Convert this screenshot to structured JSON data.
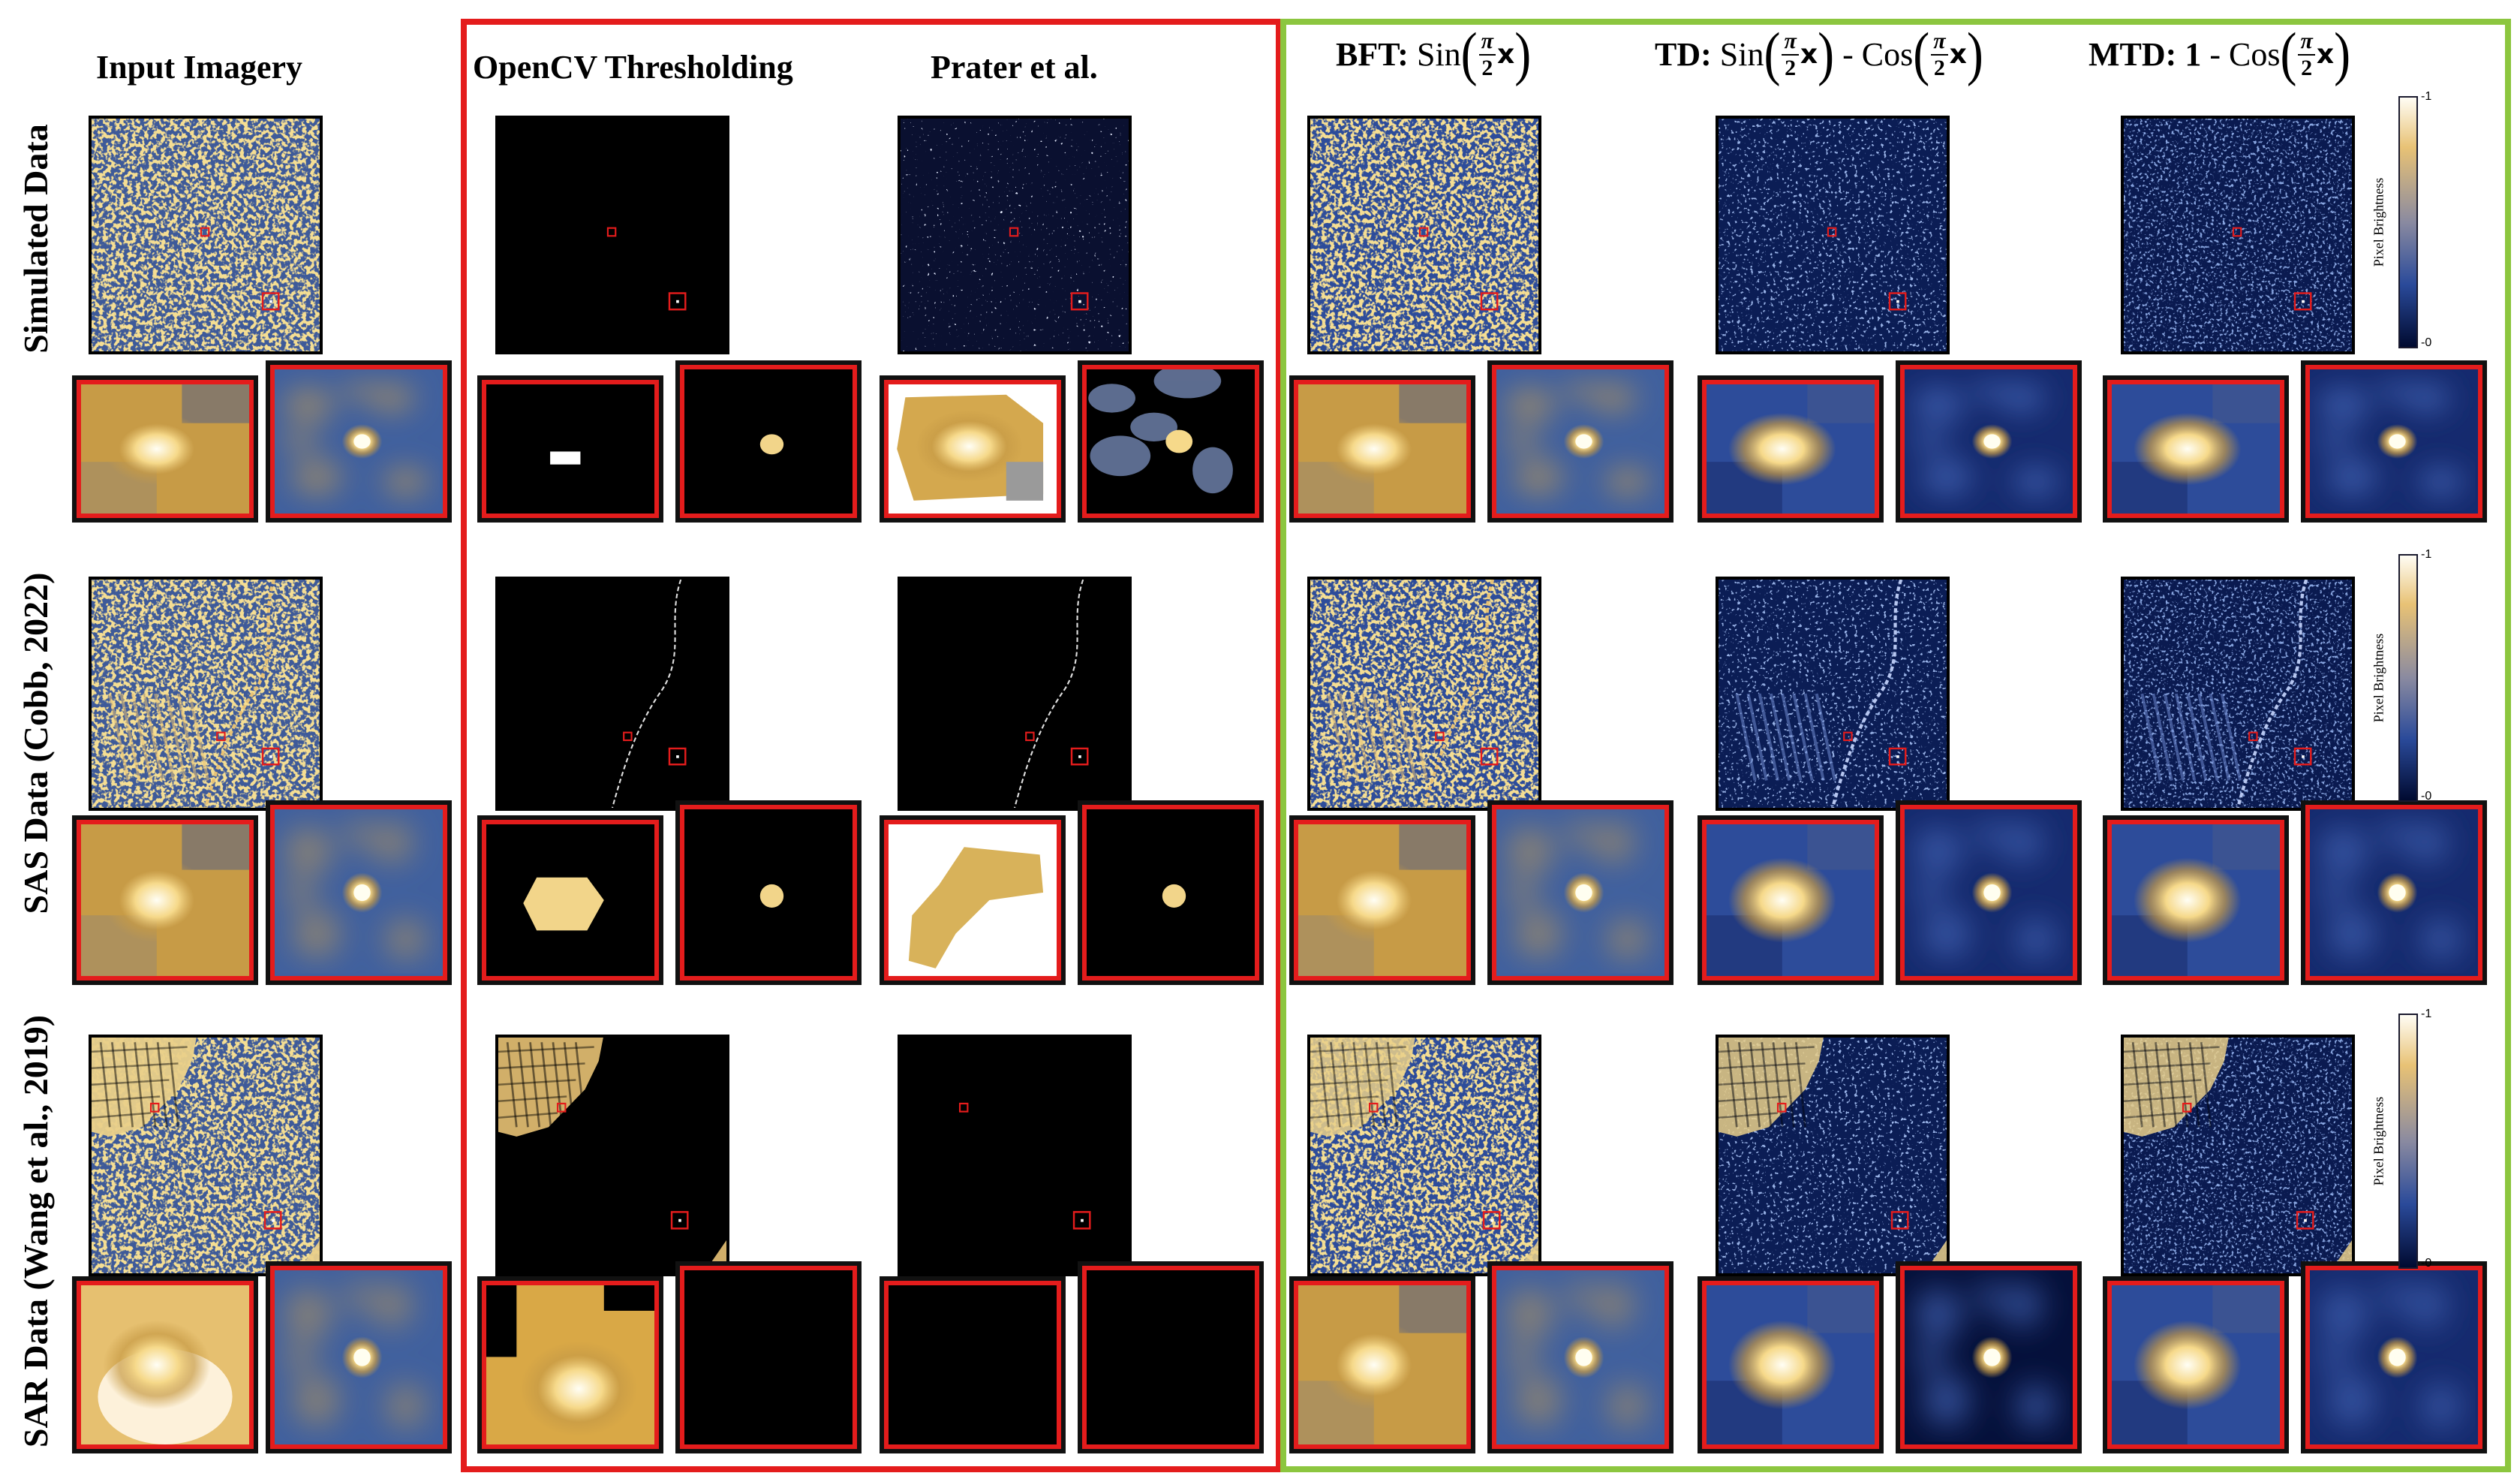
{
  "colors": {
    "group_red": "#e41c1c",
    "group_green": "#8cc63f",
    "marker_red": "#e41c1c",
    "navy": "#0b1d55",
    "gold": "#e8b84a"
  },
  "headers": {
    "input": "Input Imagery",
    "opencv": "OpenCV Thresholding",
    "prater": "Prater et al.",
    "bft_bold": "BFT:",
    "bft_fn": "Sin",
    "td_bold": "TD:",
    "td_fn1": "Sin",
    "td_op": "-",
    "td_fn2": "Cos",
    "mtd_bold": "MTD:",
    "mtd_one": "1",
    "mtd_op": "-",
    "mtd_fn": "Cos",
    "frac_num": "π",
    "frac_den": "2",
    "var": "x"
  },
  "row_labels": {
    "simulated": "Simulated Data",
    "sas": "SAS Data (Cobb, 2022)",
    "sar": "SAR Data (Wang et al., 2019)"
  },
  "colorbar": {
    "label": "Pixel Brightness",
    "max": "-1",
    "min": "-0"
  }
}
